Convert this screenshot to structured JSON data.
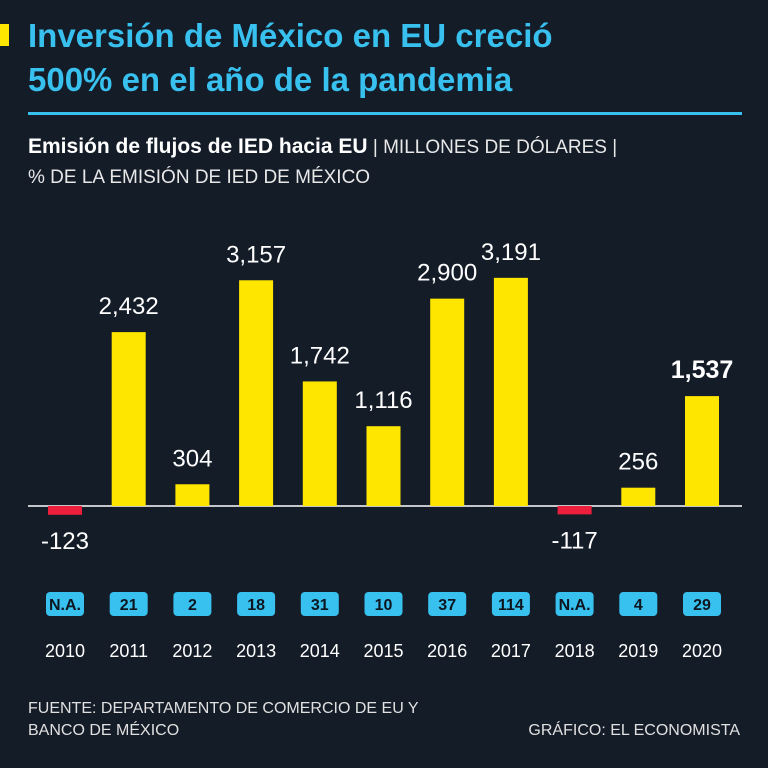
{
  "header": {
    "title_line1": "Inversión de México en EU creció",
    "title_line2": "500% en el año de la pandemia",
    "subtitle_bold": "Emisión de flujos de IED hacia EU",
    "subtitle_rest": " | MILLONES DE DÓLARES |",
    "subtitle_line2": "% DE LA EMISIÓN DE IED DE MÉXICO"
  },
  "colors": {
    "positive": "#ffe600",
    "negative": "#ee1f3c",
    "badge": "#38c0ee",
    "accent": "#38c0ee"
  },
  "chart_data": {
    "type": "bar",
    "categories": [
      "2010",
      "2011",
      "2012",
      "2013",
      "2014",
      "2015",
      "2016",
      "2017",
      "2018",
      "2019",
      "2020"
    ],
    "values": [
      -123,
      2432,
      304,
      3157,
      1742,
      1116,
      2900,
      3191,
      -117,
      256,
      1537
    ],
    "value_labels": [
      "-123",
      "2,432",
      "304",
      "3,157",
      "1,742",
      "1,116",
      "2,900",
      "3,191",
      "-117",
      "256",
      "1,537"
    ],
    "highlight_index": 10,
    "share_percent": [
      "N.A.",
      "21",
      "2",
      "18",
      "31",
      "10",
      "37",
      "114",
      "N.A.",
      "4",
      "29"
    ],
    "unit": "MILLONES DE DÓLARES",
    "ylim": [
      -123,
      3191
    ],
    "grid": false
  },
  "footer": {
    "source_line1": "FUENTE: DEPARTAMENTO DE COMERCIO DE EU Y",
    "source_line2": "BANCO DE MÉXICO",
    "credit": "GRÁFICO: EL ECONOMISTA"
  }
}
